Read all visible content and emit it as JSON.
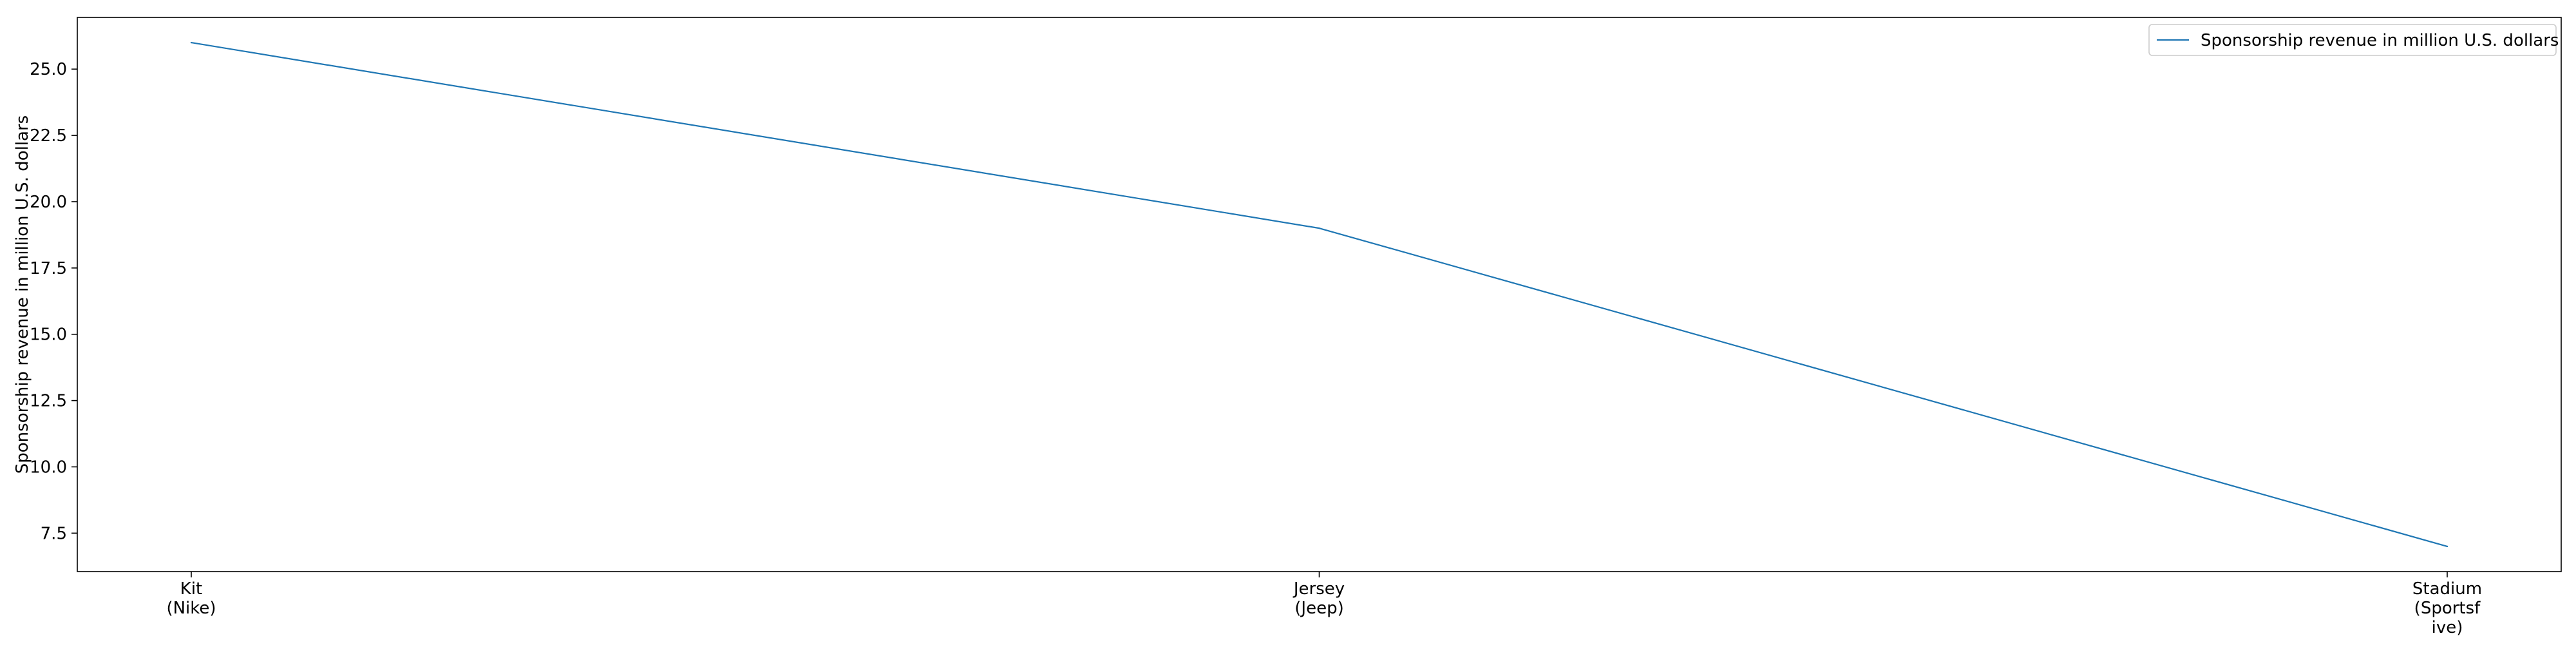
{
  "chart_data": {
    "type": "line",
    "categories": [
      "Kit\n(Nike)",
      "Jersey\n(Jeep)",
      "Stadium\n(Sportsf\nive)"
    ],
    "series": [
      {
        "name": "Sponsorship revenue in million U.S. dollars",
        "values": [
          26,
          19,
          7
        ],
        "color": "#1f77b4"
      }
    ],
    "xlabel": "",
    "ylabel": "Sponsorship revenue in million U.S. dollars",
    "ylim": [
      6.05,
      26.95
    ],
    "yticks": [
      "7.5",
      "10.0",
      "12.5",
      "15.0",
      "17.5",
      "20.0",
      "22.5",
      "25.0"
    ],
    "grid": false,
    "legend_position": "upper right"
  }
}
